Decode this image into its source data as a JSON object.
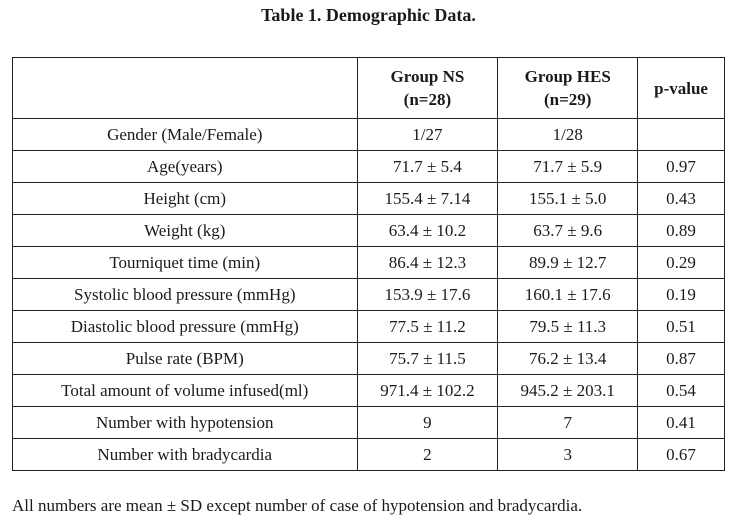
{
  "caption": "Table 1. Demographic Data.",
  "table": {
    "headers": [
      "",
      "Group NS (n=28)",
      "Group HES (n=29)",
      "p-value"
    ],
    "header_lines": [
      [
        ""
      ],
      [
        "Group NS",
        "(n=28)"
      ],
      [
        "Group HES",
        "(n=29)"
      ],
      [
        "p-value"
      ]
    ],
    "rows": [
      [
        "Gender (Male/Female)",
        "1/27",
        "1/28",
        ""
      ],
      [
        "Age(years)",
        "71.7 ± 5.4",
        "71.7 ± 5.9",
        "0.97"
      ],
      [
        "Height (cm)",
        "155.4 ± 7.14",
        "155.1 ± 5.0",
        "0.43"
      ],
      [
        "Weight (kg)",
        "63.4 ± 10.2",
        "63.7 ± 9.6",
        "0.89"
      ],
      [
        "Tourniquet time (min)",
        "86.4 ± 12.3",
        "89.9 ± 12.7",
        "0.29"
      ],
      [
        "Systolic blood pressure (mmHg)",
        "153.9 ± 17.6",
        "160.1 ± 17.6",
        "0.19"
      ],
      [
        "Diastolic blood pressure (mmHg)",
        "77.5 ± 11.2",
        "79.5 ± 11.3",
        "0.51"
      ],
      [
        "Pulse rate (BPM)",
        "75.7 ± 11.5",
        "76.2 ± 13.4",
        "0.87"
      ],
      [
        "Total amount of volume infused(ml)",
        "971.4 ± 102.2",
        "945.2 ± 203.1",
        "0.54"
      ],
      [
        "Number with hypotension",
        "9",
        "7",
        "0.41"
      ],
      [
        "Number with bradycardia",
        "2",
        "3",
        "0.67"
      ]
    ]
  },
  "footnote": "All numbers are mean ± SD except number of case of hypotension and bradycardia."
}
